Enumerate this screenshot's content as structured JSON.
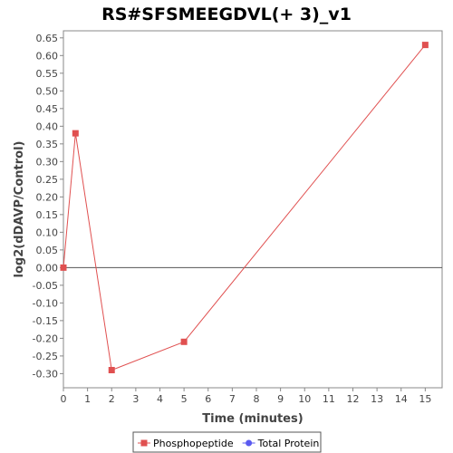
{
  "chart_data": {
    "type": "line",
    "title": "RS#SFSMEEGDVL(+ 3)_v1",
    "xlabel": "Time (minutes)",
    "ylabel": "log2(dDAVP/Control)",
    "xlim": [
      0,
      15.7
    ],
    "ylim": [
      -0.34,
      0.67
    ],
    "xticks": [
      0,
      1,
      2,
      3,
      4,
      5,
      6,
      7,
      8,
      9,
      10,
      11,
      12,
      13,
      14,
      15
    ],
    "yticks": [
      -0.3,
      -0.25,
      -0.2,
      -0.15,
      -0.1,
      -0.05,
      0.0,
      0.05,
      0.1,
      0.15,
      0.2,
      0.25,
      0.3,
      0.35,
      0.4,
      0.45,
      0.5,
      0.55,
      0.6,
      0.65
    ],
    "grid": false,
    "zero_line": true,
    "legend_position": "bottom",
    "series": [
      {
        "name": "Phosphopeptide",
        "color": "#e05050",
        "marker": "square",
        "x": [
          0,
          0.5,
          2,
          5,
          15
        ],
        "y": [
          0.0,
          0.38,
          -0.29,
          -0.21,
          0.63
        ]
      },
      {
        "name": "Total Protein",
        "color": "#5a5af0",
        "marker": "circle",
        "x": [],
        "y": []
      }
    ]
  }
}
